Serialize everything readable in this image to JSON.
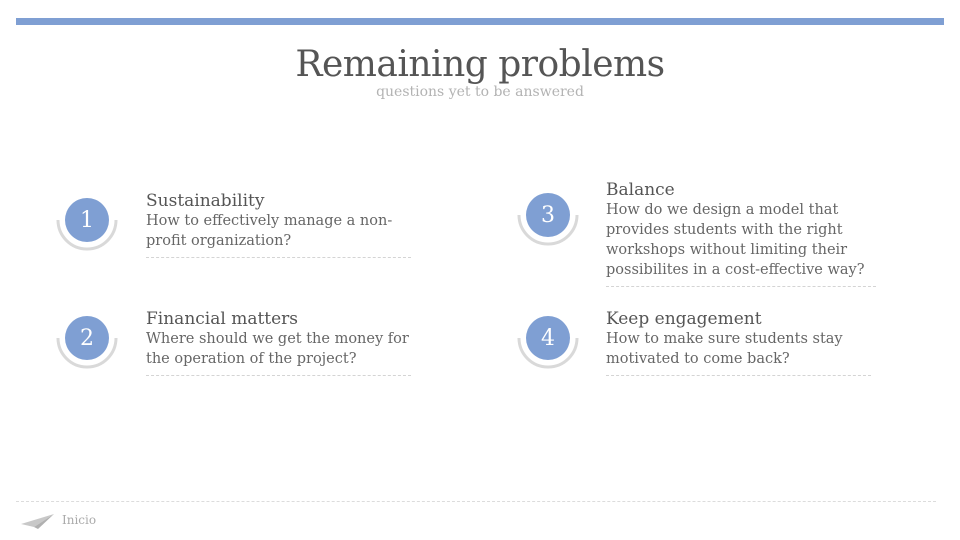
{
  "slide": {
    "title": "Remaining problems",
    "subtitle": "questions yet to be answered"
  },
  "items": [
    {
      "number": "1",
      "title": "Sustainability",
      "description": "How to effectively manage a non-profit organization?"
    },
    {
      "number": "2",
      "title": "Financial matters",
      "description": "Where should we get the money for the operation of the project?"
    },
    {
      "number": "3",
      "title": "Balance",
      "description": "How do we design a model that provides students with the right workshops without limiting their possibilites in a cost-effective way?"
    },
    {
      "number": "4",
      "title": "Keep engagement",
      "description": "How to make sure students stay motivated to come back?"
    }
  ],
  "footer": {
    "label": "Inicio",
    "icon": "paper-plane-icon"
  },
  "colors": {
    "accent": "#7f9fd3",
    "title": "#555555",
    "subtitle": "#b3b3b3",
    "ring": "#d9d9d9"
  }
}
